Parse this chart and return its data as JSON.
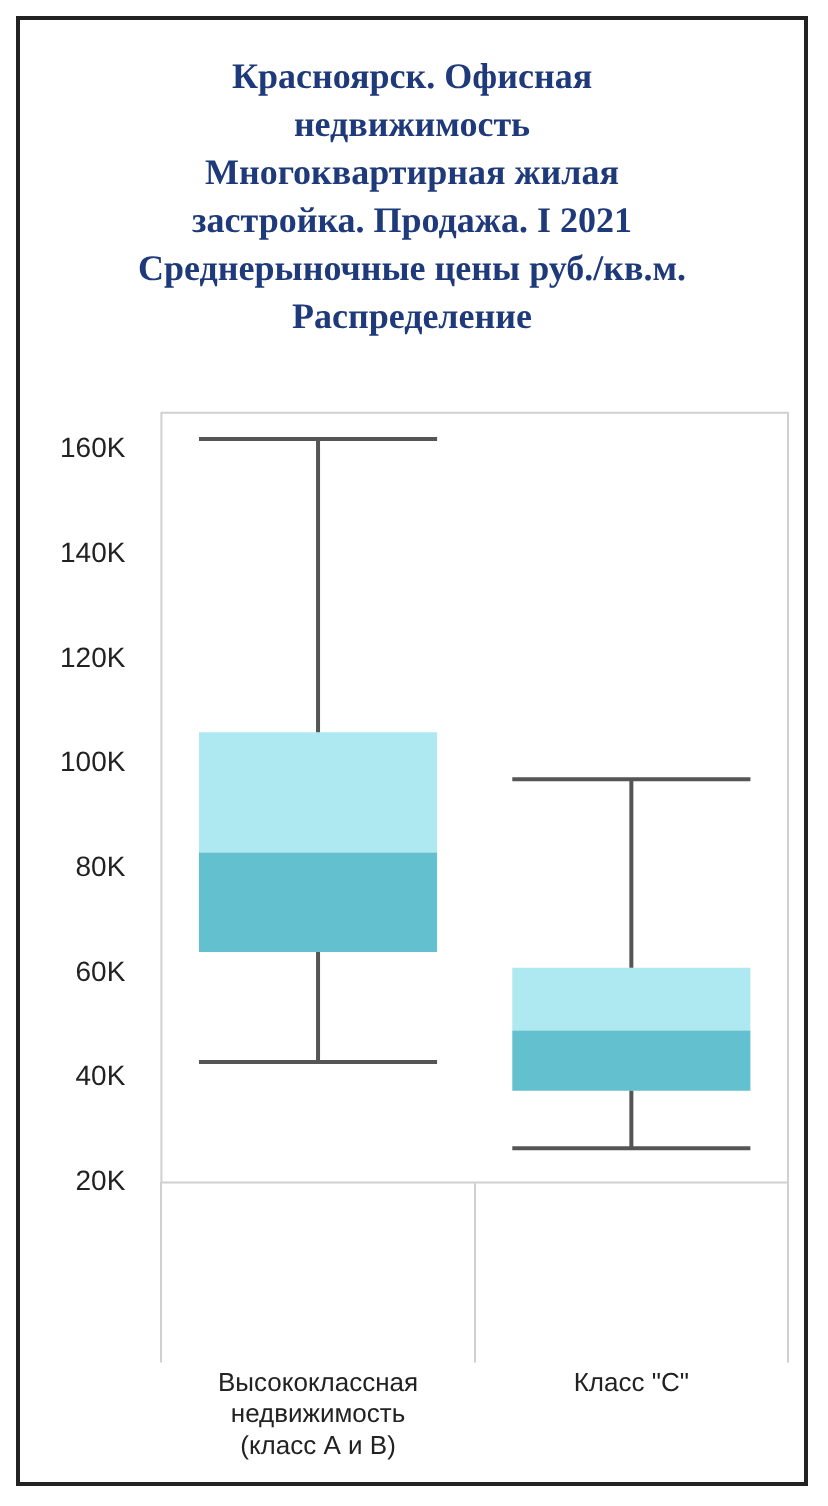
{
  "chart_data": {
    "type": "box",
    "title": "Красноярск. Офисная\nнедвижимость\nМногоквартирная жилая\nзастройка. Продажа. I 2021\nСреднерыночные цены руб./кв.м.\nРаспределение",
    "categories": [
      "Высококлассная недвижимость (класс А и В)",
      "Класс \"С\""
    ],
    "boxes": [
      {
        "low": 43000,
        "q1": 64000,
        "median": 83000,
        "q3": 106000,
        "high": 162000
      },
      {
        "low": 26500,
        "q1": 37500,
        "median": 49000,
        "q3": 61000,
        "high": 97000
      }
    ],
    "colors": [
      "#63c0cf",
      "#63c0cf"
    ],
    "color": "#aee8f0",
    "ylim": [
      20000,
      167000
    ],
    "yticks": [
      {
        "value": 20000,
        "label": "20K"
      },
      {
        "value": 40000,
        "label": "40K"
      },
      {
        "value": 60000,
        "label": "60K"
      },
      {
        "value": 80000,
        "label": "80K"
      },
      {
        "value": 100000,
        "label": "100K"
      },
      {
        "value": 120000,
        "label": "120K"
      },
      {
        "value": 140000,
        "label": "140K"
      },
      {
        "value": 160000,
        "label": "160K"
      }
    ],
    "grid": false,
    "legend": false
  }
}
